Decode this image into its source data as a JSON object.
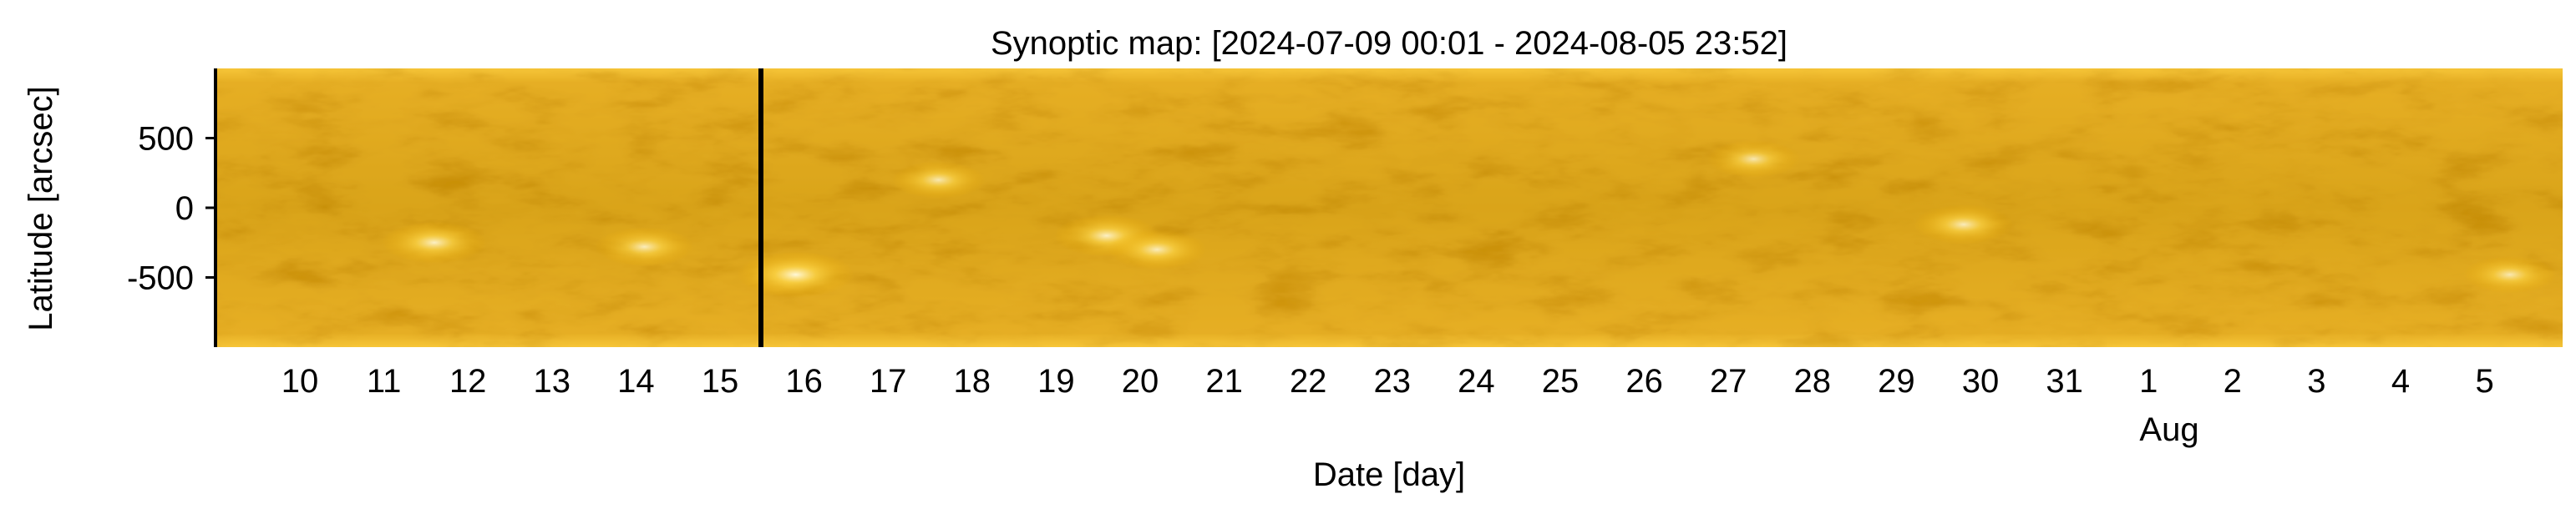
{
  "chart_data": {
    "type": "heatmap",
    "title": "Synoptic map: [2024-07-09 00:01 - 2024-08-05 23:52]",
    "xlabel": "Date [day]",
    "ylabel": "Latitude [arcsec]",
    "x_tick_labels": [
      "10",
      "11",
      "12",
      "13",
      "14",
      "15",
      "16",
      "17",
      "18",
      "19",
      "20",
      "21",
      "22",
      "23",
      "24",
      "25",
      "26",
      "27",
      "28",
      "29",
      "30",
      "31",
      "1",
      "2",
      "3",
      "4",
      "5"
    ],
    "x_secondary_label": "Aug",
    "y_ticks": [
      500,
      0,
      -500
    ],
    "y_tick_labels": [
      "500",
      "0",
      "-500"
    ],
    "y_range": [
      -1000,
      1000
    ],
    "colormap": [
      "#3a2600",
      "#7a5400",
      "#c48a00",
      "#f0b000",
      "#ffdc66",
      "#fff7d6"
    ],
    "data_gap_marker": "2024-07-15 ~12:00 (vertical black line)",
    "bright_regions": [
      {
        "day_index": 2.6,
        "lat": -250,
        "intensity": 0.9
      },
      {
        "day_index": 5.1,
        "lat": -280,
        "intensity": 0.85
      },
      {
        "day_index": 6.9,
        "lat": -480,
        "intensity": 1.0
      },
      {
        "day_index": 8.6,
        "lat": 200,
        "intensity": 0.8
      },
      {
        "day_index": 10.6,
        "lat": -200,
        "intensity": 0.9
      },
      {
        "day_index": 11.2,
        "lat": -300,
        "intensity": 0.85
      },
      {
        "day_index": 18.3,
        "lat": 350,
        "intensity": 0.8
      },
      {
        "day_index": 20.8,
        "lat": -120,
        "intensity": 0.85
      },
      {
        "day_index": 27.3,
        "lat": -480,
        "intensity": 0.8
      }
    ]
  }
}
